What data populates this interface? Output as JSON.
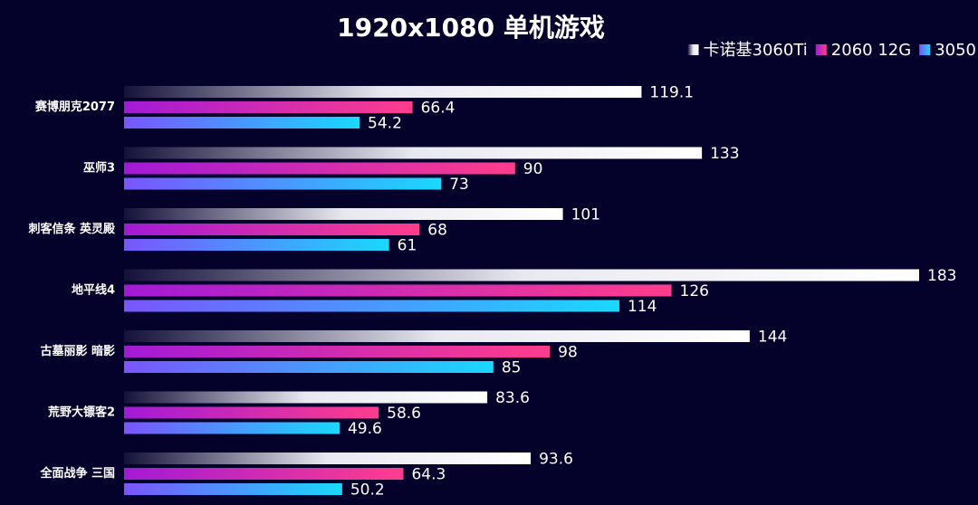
{
  "chart_data": {
    "type": "bar",
    "orientation": "horizontal",
    "title": "1920x1080  单机游戏",
    "categories": [
      "赛博朋克2077",
      "巫师3",
      "刺客信条  英灵殿",
      "地平线4",
      "古墓丽影  暗影",
      "荒野大镖客2",
      "全面战争  三国"
    ],
    "series": [
      {
        "name": "卡诺基3060Ti",
        "color": "#ffffff",
        "gradient": [
          "#15123a",
          "#e8e8f0",
          "#ffffff"
        ],
        "values": [
          119.1,
          133,
          101,
          183,
          144,
          83.6,
          93.6
        ]
      },
      {
        "name": "2060 12G",
        "color": "#ff3d8c",
        "gradient": [
          "#a21ad6",
          "#ff3d8c"
        ],
        "values": [
          66.4,
          90,
          68,
          126,
          98,
          58.6,
          64.3
        ]
      },
      {
        "name": "3050",
        "color": "#19d9ff",
        "gradient": [
          "#7a55ff",
          "#19d9ff"
        ],
        "values": [
          54.2,
          73,
          61,
          114,
          85,
          49.6,
          50.2
        ]
      }
    ],
    "legend": "top-right",
    "grid": false
  }
}
